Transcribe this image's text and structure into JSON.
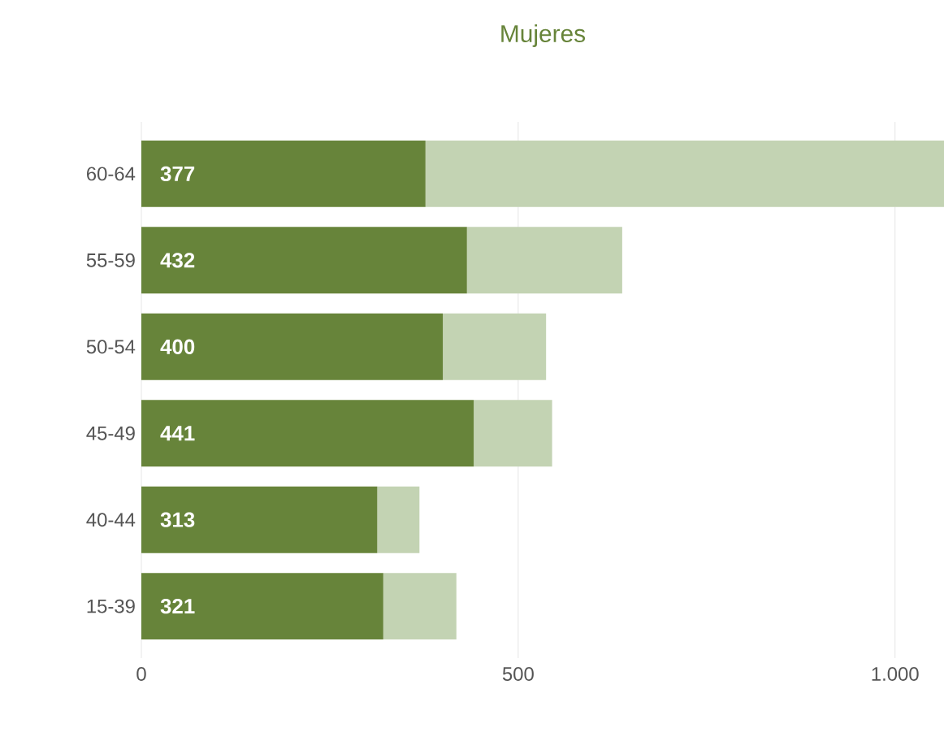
{
  "chart_data": {
    "type": "bar",
    "orientation": "horizontal",
    "stacked": true,
    "title": "Mujeres",
    "categories": [
      "60-64",
      "55-59",
      "50-54",
      "45-49",
      "40-44",
      "15-39"
    ],
    "series": [
      {
        "color": "#67843a",
        "values": [
          377,
          432,
          400,
          441,
          313,
          321
        ],
        "value_labels": [
          "377",
          "432",
          "400",
          "441",
          "313",
          "321"
        ]
      },
      {
        "color": "#c3d3b3",
        "values": [
          688,
          206,
          137,
          104,
          56,
          97
        ]
      }
    ],
    "xlim": [
      0,
      1065
    ],
    "xticks": [
      0,
      500,
      {
        "value": 1000,
        "label": "1.000"
      }
    ],
    "grid": "x"
  }
}
